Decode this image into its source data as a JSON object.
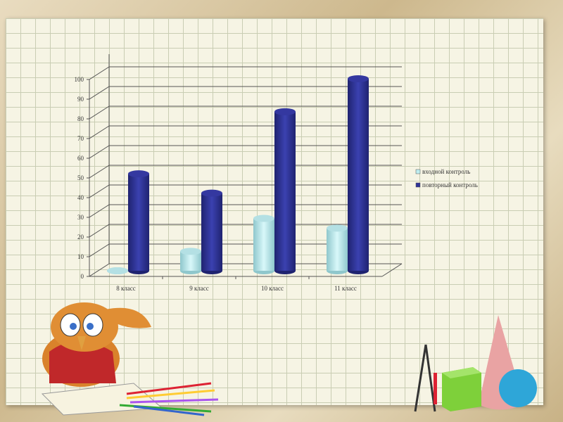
{
  "chart_data": {
    "type": "bar",
    "categories": [
      "8 класс",
      "9 класс",
      "10 класс",
      "11 класс"
    ],
    "series": [
      {
        "name": "входной контроль",
        "values": [
          0,
          10,
          27,
          22
        ],
        "color": "#bfeef0"
      },
      {
        "name": "повторный контроль",
        "values": [
          50,
          40,
          82,
          99
        ],
        "color": "#2e3396"
      }
    ],
    "ylim": [
      0,
      100
    ],
    "yticks": [
      0,
      10,
      20,
      30,
      40,
      50,
      60,
      70,
      80,
      90,
      100
    ],
    "grid": true,
    "legend": "right",
    "style": "3d-cylinder"
  }
}
